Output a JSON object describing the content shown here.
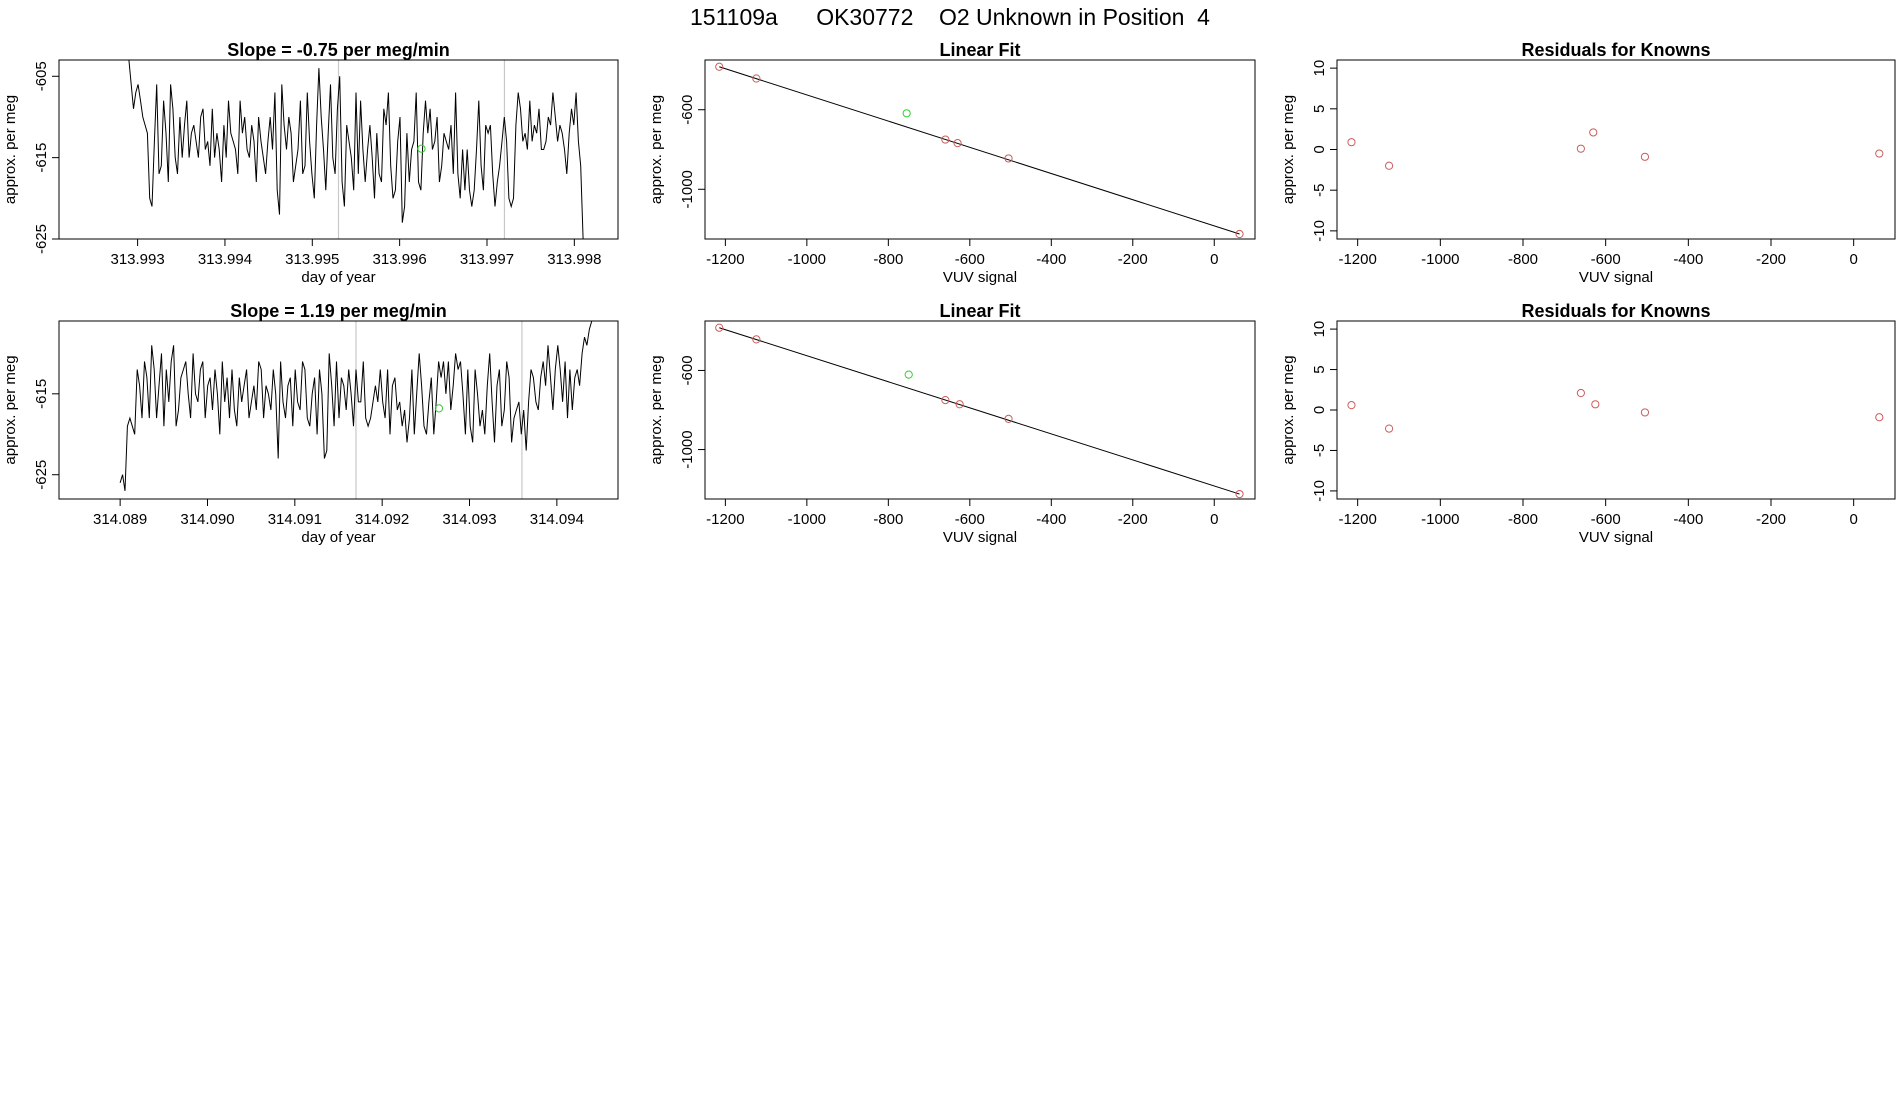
{
  "title": "151109a      OK30772    O2 Unknown in Position  4",
  "colors": {
    "known": "#cd5c5c",
    "unknown": "#32cd32",
    "line": "#000000",
    "marker": "#c8c8c8"
  },
  "chart_data": [
    {
      "type": "line",
      "title": "Slope =  -0.75  per meg/min",
      "xlabel": "day of year",
      "ylabel": "approx. per meg",
      "xlim": [
        313.9921,
        313.9985
      ],
      "ylim": [
        -625,
        -603
      ],
      "xticks": [
        313.993,
        313.994,
        313.995,
        313.996,
        313.997,
        313.998
      ],
      "xtick_labels": [
        "313.993",
        "313.994",
        "313.995",
        "313.996",
        "313.997",
        "313.998"
      ],
      "yticks": [
        -605,
        -615,
        -625
      ],
      "ytick_labels": [
        "-605",
        "-615",
        "-625"
      ],
      "x_start": 313.9929,
      "x_end": 313.9981,
      "values": [
        -603,
        -606,
        -609,
        -607,
        -606,
        -608,
        -610,
        -611,
        -612,
        -620,
        -621,
        -613,
        -606,
        -617,
        -616,
        -608,
        -612,
        -618,
        -606,
        -609,
        -615,
        -617,
        -610,
        -615,
        -611,
        -608,
        -615,
        -612,
        -611,
        -613,
        -615,
        -610,
        -609,
        -614,
        -613,
        -616,
        -609,
        -615,
        -612,
        -614,
        -618,
        -611,
        -615,
        -608,
        -612,
        -613,
        -614,
        -617,
        -608,
        -612,
        -610,
        -614,
        -615,
        -611,
        -613,
        -618,
        -610,
        -613,
        -615,
        -617,
        -613,
        -610,
        -614,
        -607,
        -619,
        -622,
        -606,
        -611,
        -614,
        -610,
        -612,
        -618,
        -616,
        -614,
        -608,
        -617,
        -616,
        -607,
        -613,
        -617,
        -620,
        -611,
        -604,
        -610,
        -614,
        -619,
        -612,
        -606,
        -615,
        -617,
        -609,
        -605,
        -618,
        -621,
        -611,
        -613,
        -615,
        -619,
        -607,
        -617,
        -608,
        -614,
        -618,
        -614,
        -611,
        -615,
        -620,
        -612,
        -617,
        -618,
        -609,
        -611,
        -607,
        -616,
        -620,
        -619,
        -613,
        -610,
        -623,
        -621,
        -612,
        -618,
        -614,
        -613,
        -607,
        -618,
        -619,
        -612,
        -608,
        -612,
        -609,
        -614,
        -613,
        -610,
        -618,
        -616,
        -612,
        -613,
        -614,
        -611,
        -617,
        -607,
        -617,
        -620,
        -614,
        -619,
        -614,
        -619,
        -621,
        -619,
        -614,
        -608,
        -616,
        -619,
        -611,
        -612,
        -611,
        -617,
        -621,
        -618,
        -616,
        -613,
        -610,
        -613,
        -620,
        -621,
        -620,
        -611,
        -607,
        -609,
        -613,
        -612,
        -614,
        -608,
        -613,
        -611,
        -612,
        -609,
        -614,
        -614,
        -613,
        -610,
        -611,
        -607,
        -610,
        -613,
        -611,
        -612,
        -614,
        -617,
        -612,
        -609,
        -611,
        -607,
        -613,
        -616,
        -625
      ],
      "markers": [
        313.9953,
        313.9972
      ],
      "unknown_point": {
        "x": 313.99625,
        "y": -613.9
      }
    },
    {
      "type": "scatter",
      "title": "Linear Fit",
      "xlabel": "VUV signal",
      "ylabel": "approx. per meg",
      "xlim": [
        -1250,
        100
      ],
      "ylim": [
        -1250,
        -350
      ],
      "xticks": [
        -1200,
        -1000,
        -800,
        -600,
        -400,
        -200,
        0
      ],
      "xtick_labels": [
        "-1200",
        "-1000",
        "-800",
        "-600",
        "-400",
        "-200",
        "0"
      ],
      "yticks": [
        -600,
        -1000
      ],
      "ytick_labels": [
        "-600",
        "-1000"
      ],
      "fit_line": [
        [
          -1215,
          -384
        ],
        [
          62,
          -1225
        ]
      ],
      "knowns": [
        [
          -1215,
          -384
        ],
        [
          -1124,
          -443
        ],
        [
          -660,
          -750
        ],
        [
          -630,
          -768
        ],
        [
          -505,
          -845
        ],
        [
          62,
          -1225
        ]
      ],
      "unknown": [
        [
          -755,
          -618
        ]
      ]
    },
    {
      "type": "scatter",
      "title": "Residuals for Knowns",
      "xlabel": "VUV signal",
      "ylabel": "approx. per meg",
      "xlim": [
        -1250,
        100
      ],
      "ylim": [
        -11,
        11
      ],
      "xticks": [
        -1200,
        -1000,
        -800,
        -600,
        -400,
        -200,
        0
      ],
      "xtick_labels": [
        "-1200",
        "-1000",
        "-800",
        "-600",
        "-400",
        "-200",
        "0"
      ],
      "yticks": [
        10,
        5,
        0,
        -5,
        -10
      ],
      "ytick_labels": [
        "10",
        "5",
        "0",
        "-5",
        "-10"
      ],
      "knowns": [
        [
          -1215,
          0.9
        ],
        [
          -1124,
          -2.0
        ],
        [
          -660,
          0.1
        ],
        [
          -630,
          2.1
        ],
        [
          -505,
          -0.9
        ],
        [
          62,
          -0.5
        ]
      ]
    },
    {
      "type": "line",
      "title": "Slope =  1.19  per meg/min",
      "xlabel": "day of year",
      "ylabel": "approx. per meg",
      "xlim": [
        314.0883,
        314.0947
      ],
      "ylim": [
        -628,
        -606
      ],
      "xticks": [
        314.089,
        314.09,
        314.091,
        314.092,
        314.093,
        314.094
      ],
      "xtick_labels": [
        "314.089",
        "314.090",
        "314.091",
        "314.092",
        "314.093",
        "314.094"
      ],
      "yticks": [
        -615,
        -625
      ],
      "ytick_labels": [
        "-615",
        "-625"
      ],
      "x_start": 314.089,
      "x_end": 314.0944,
      "values": [
        -626,
        -625,
        -627,
        -619,
        -618,
        -619,
        -620,
        -612,
        -614,
        -618,
        -611,
        -613,
        -618,
        -609,
        -612,
        -618,
        -614,
        -610,
        -619,
        -612,
        -616,
        -611,
        -609,
        -619,
        -617,
        -613,
        -612,
        -611,
        -615,
        -618,
        -610,
        -615,
        -616,
        -612,
        -611,
        -618,
        -614,
        -613,
        -617,
        -612,
        -615,
        -620,
        -611,
        -616,
        -613,
        -618,
        -612,
        -617,
        -619,
        -613,
        -616,
        -614,
        -612,
        -618,
        -616,
        -614,
        -617,
        -611,
        -612,
        -618,
        -614,
        -615,
        -617,
        -612,
        -615,
        -623,
        -611,
        -616,
        -618,
        -614,
        -613,
        -619,
        -612,
        -616,
        -617,
        -611,
        -612,
        -618,
        -619,
        -615,
        -613,
        -620,
        -612,
        -615,
        -623,
        -622,
        -610,
        -614,
        -619,
        -611,
        -618,
        -613,
        -614,
        -617,
        -612,
        -615,
        -619,
        -612,
        -616,
        -616,
        -611,
        -618,
        -619,
        -618,
        -616,
        -614,
        -616,
        -612,
        -616,
        -618,
        -612,
        -620,
        -614,
        -613,
        -617,
        -616,
        -619,
        -617,
        -621,
        -618,
        -612,
        -620,
        -615,
        -610,
        -614,
        -619,
        -620,
        -616,
        -613,
        -620,
        -616,
        -611,
        -613,
        -611,
        -615,
        -611,
        -617,
        -614,
        -610,
        -612,
        -611,
        -615,
        -620,
        -612,
        -619,
        -621,
        -612,
        -615,
        -619,
        -617,
        -620,
        -614,
        -610,
        -616,
        -621,
        -614,
        -612,
        -619,
        -617,
        -611,
        -613,
        -621,
        -618,
        -617,
        -616,
        -620,
        -617,
        -622,
        -616,
        -612,
        -613,
        -616,
        -617,
        -613,
        -611,
        -614,
        -609,
        -613,
        -617,
        -612,
        -609,
        -612,
        -616,
        -611,
        -618,
        -612,
        -617,
        -613,
        -612,
        -614,
        -610,
        -608,
        -609,
        -607,
        -606
      ],
      "markers": [
        314.0917,
        314.0936
      ],
      "unknown_point": {
        "x": 314.09265,
        "y": -616.8
      }
    },
    {
      "type": "scatter",
      "title": "Linear Fit",
      "xlabel": "VUV signal",
      "ylabel": "approx. per meg",
      "xlim": [
        -1250,
        100
      ],
      "ylim": [
        -1250,
        -350
      ],
      "xticks": [
        -1200,
        -1000,
        -800,
        -600,
        -400,
        -200,
        0
      ],
      "xtick_labels": [
        "-1200",
        "-1000",
        "-800",
        "-600",
        "-400",
        "-200",
        "0"
      ],
      "yticks": [
        -600,
        -1000
      ],
      "ytick_labels": [
        "-600",
        "-1000"
      ],
      "fit_line": [
        [
          -1215,
          -384
        ],
        [
          62,
          -1225
        ]
      ],
      "knowns": [
        [
          -1215,
          -384
        ],
        [
          -1124,
          -443
        ],
        [
          -660,
          -750
        ],
        [
          -625,
          -771
        ],
        [
          -505,
          -845
        ],
        [
          62,
          -1225
        ]
      ],
      "unknown": [
        [
          -750,
          -621
        ]
      ]
    },
    {
      "type": "scatter",
      "title": "Residuals for Knowns",
      "xlabel": "VUV signal",
      "ylabel": "approx. per meg",
      "xlim": [
        -1250,
        100
      ],
      "ylim": [
        -11,
        11
      ],
      "xticks": [
        -1200,
        -1000,
        -800,
        -600,
        -400,
        -200,
        0
      ],
      "xtick_labels": [
        "-1200",
        "-1000",
        "-800",
        "-600",
        "-400",
        "-200",
        "0"
      ],
      "yticks": [
        10,
        5,
        0,
        -5,
        -10
      ],
      "ytick_labels": [
        "10",
        "5",
        "0",
        "-5",
        "-10"
      ],
      "knowns": [
        [
          -1215,
          0.6
        ],
        [
          -1124,
          -2.3
        ],
        [
          -660,
          2.1
        ],
        [
          -625,
          0.7
        ],
        [
          -505,
          -0.3
        ],
        [
          62,
          -0.9
        ]
      ]
    }
  ]
}
